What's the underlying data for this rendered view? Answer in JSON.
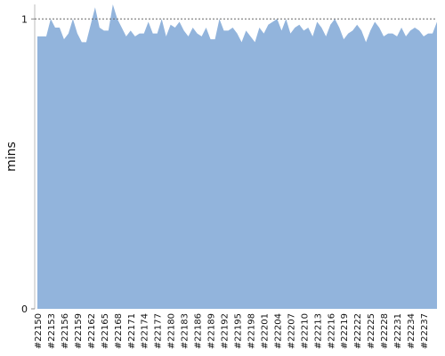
{
  "chart_data": {
    "type": "area",
    "y_label": "mins",
    "color": "#92b4dc",
    "grid": true,
    "categories": [
      "#22150",
      null,
      null,
      "#22153",
      null,
      null,
      "#22156",
      null,
      null,
      "#22159",
      null,
      null,
      "#22162",
      null,
      null,
      "#22165",
      null,
      null,
      "#22168",
      null,
      null,
      "#22171",
      null,
      null,
      "#22174",
      null,
      null,
      "#22177",
      null,
      null,
      "#22180",
      null,
      null,
      "#22183",
      null,
      null,
      "#22186",
      null,
      null,
      "#22189",
      null,
      null,
      "#22192",
      null,
      null,
      "#22195",
      null,
      null,
      "#22198",
      null,
      null,
      "#22201",
      null,
      null,
      "#22204",
      null,
      null,
      "#22207",
      null,
      null,
      "#22210",
      null,
      null,
      "#22213",
      null,
      null,
      "#22216",
      null,
      null,
      "#22219",
      null,
      null,
      "#22222",
      null,
      null,
      "#22225",
      null,
      null,
      "#22228",
      null,
      null,
      "#22231",
      null,
      null,
      "#22234",
      null,
      null,
      "#22237",
      null,
      null,
      null
    ],
    "values": [
      0.94,
      0.94,
      0.94,
      1.0,
      0.97,
      0.97,
      0.93,
      0.95,
      1.0,
      0.95,
      0.92,
      0.92,
      0.98,
      1.04,
      0.97,
      0.96,
      0.96,
      1.05,
      1.0,
      0.97,
      0.94,
      0.96,
      0.94,
      0.95,
      0.95,
      0.99,
      0.95,
      0.95,
      1.0,
      0.94,
      0.98,
      0.97,
      0.99,
      0.96,
      0.94,
      0.97,
      0.95,
      0.94,
      0.97,
      0.93,
      0.93,
      1.0,
      0.96,
      0.96,
      0.97,
      0.95,
      0.92,
      0.96,
      0.94,
      0.92,
      0.97,
      0.95,
      0.98,
      0.99,
      1.0,
      0.96,
      1.0,
      0.95,
      0.97,
      0.98,
      0.96,
      0.97,
      0.94,
      0.99,
      0.97,
      0.94,
      0.98,
      1.0,
      0.97,
      0.93,
      0.95,
      0.96,
      0.98,
      0.96,
      0.92,
      0.96,
      0.99,
      0.97,
      0.94,
      0.95,
      0.95,
      0.94,
      0.97,
      0.94,
      0.96,
      0.97,
      0.96,
      0.94,
      0.95,
      0.95,
      0.99
    ],
    "ylim": [
      0,
      1.05
    ],
    "yticks": [
      0,
      1
    ]
  }
}
